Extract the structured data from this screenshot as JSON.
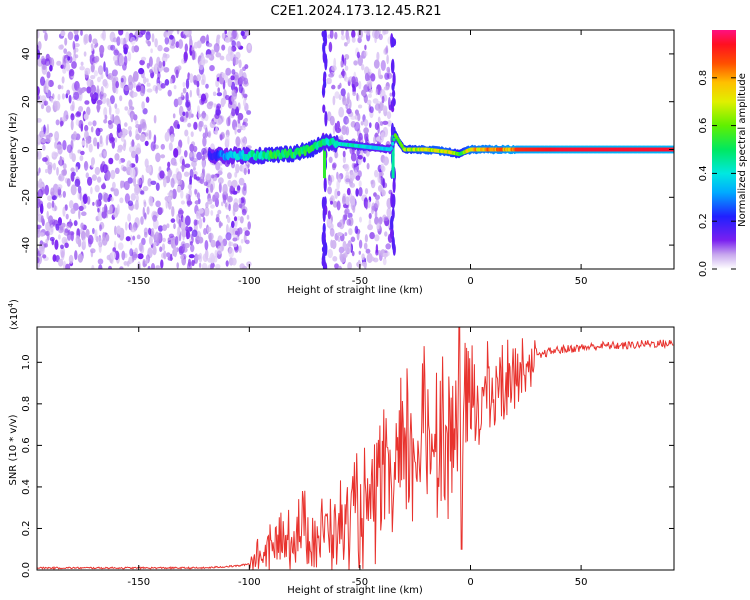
{
  "title": "C2E1.2024.173.12.45.R21",
  "chart_data": [
    {
      "type": "heatmap",
      "xlabel": "Height of straight line (km)",
      "ylabel": "Frequency (Hz)",
      "xlim": [
        -196,
        92
      ],
      "ylim": [
        -50,
        50
      ],
      "xticks": [
        -150,
        -100,
        -50,
        0,
        50
      ],
      "xtick_labels": [
        "-150",
        "-100",
        "-50",
        "0",
        "50"
      ],
      "yticks": [
        -40,
        -20,
        0,
        20,
        40
      ],
      "ytick_labels": [
        "-40",
        "-20",
        "0",
        "20",
        "40"
      ],
      "noise_regions": [
        [
          -196,
          -100
        ],
        [
          -64,
          -36
        ]
      ],
      "tone_track": {
        "x": [
          -118,
          -110,
          -100,
          -90,
          -80,
          -72,
          -66,
          -36,
          -34,
          -30,
          -20,
          -10,
          -5,
          0,
          10,
          20,
          40,
          60,
          92
        ],
        "y": [
          -2.5,
          -2.5,
          -2.5,
          -2.5,
          -1.5,
          0,
          3,
          0,
          6,
          0,
          0,
          -1,
          -2,
          0,
          0,
          0,
          0,
          0,
          0
        ],
        "amplitude": [
          0.2,
          0.35,
          0.45,
          0.55,
          0.55,
          0.6,
          0.5,
          0.4,
          0.6,
          0.65,
          0.75,
          0.75,
          0.6,
          0.8,
          0.85,
          0.9,
          0.95,
          0.95,
          0.95
        ]
      },
      "colorbar": {
        "label": "Normalized spectral amplitude",
        "range": [
          0,
          1
        ],
        "ticks": [
          0.0,
          0.2,
          0.4,
          0.6,
          0.8
        ],
        "tick_labels": [
          "0.0",
          "0.2",
          "0.4",
          "0.6",
          "0.8"
        ]
      }
    },
    {
      "type": "line",
      "xlabel": "Height of straight line (km)",
      "ylabel": "SNR (10 * v/v)",
      "multiplier": "(x10",
      "multiplier_exp": "4",
      "multiplier_close": ")",
      "xlim": [
        -196,
        92
      ],
      "ylim": [
        0,
        1.17
      ],
      "xticks": [
        -150,
        -100,
        -50,
        0,
        50
      ],
      "xtick_labels": [
        "-150",
        "-100",
        "-50",
        "0",
        "50"
      ],
      "yticks": [
        0.0,
        0.2,
        0.4,
        0.6,
        0.8,
        1.0
      ],
      "ytick_labels": [
        "0.0",
        "0.2",
        "0.4",
        "0.6",
        "0.8",
        "1.0"
      ],
      "series": [
        {
          "color": "#e8322d",
          "x": [
            -196,
            -180,
            -160,
            -140,
            -120,
            -105,
            -100,
            -95,
            -90,
            -85,
            -80,
            -75,
            -70,
            -65,
            -60,
            -55,
            -50,
            -45,
            -40,
            -35,
            -30,
            -25,
            -20,
            -15,
            -10,
            -5,
            0,
            5,
            10,
            15,
            20,
            25,
            30,
            35,
            40,
            50,
            60,
            70,
            80,
            92
          ],
          "y": [
            0.01,
            0.01,
            0.01,
            0.01,
            0.01,
            0.02,
            0.03,
            0.07,
            0.1,
            0.13,
            0.17,
            0.19,
            0.16,
            0.2,
            0.22,
            0.22,
            0.3,
            0.3,
            0.38,
            0.42,
            0.5,
            0.58,
            0.64,
            0.66,
            0.66,
            0.7,
            0.8,
            0.84,
            0.86,
            0.9,
            0.95,
            0.99,
            1.02,
            1.05,
            1.06,
            1.07,
            1.08,
            1.08,
            1.09,
            1.09
          ]
        }
      ]
    }
  ]
}
